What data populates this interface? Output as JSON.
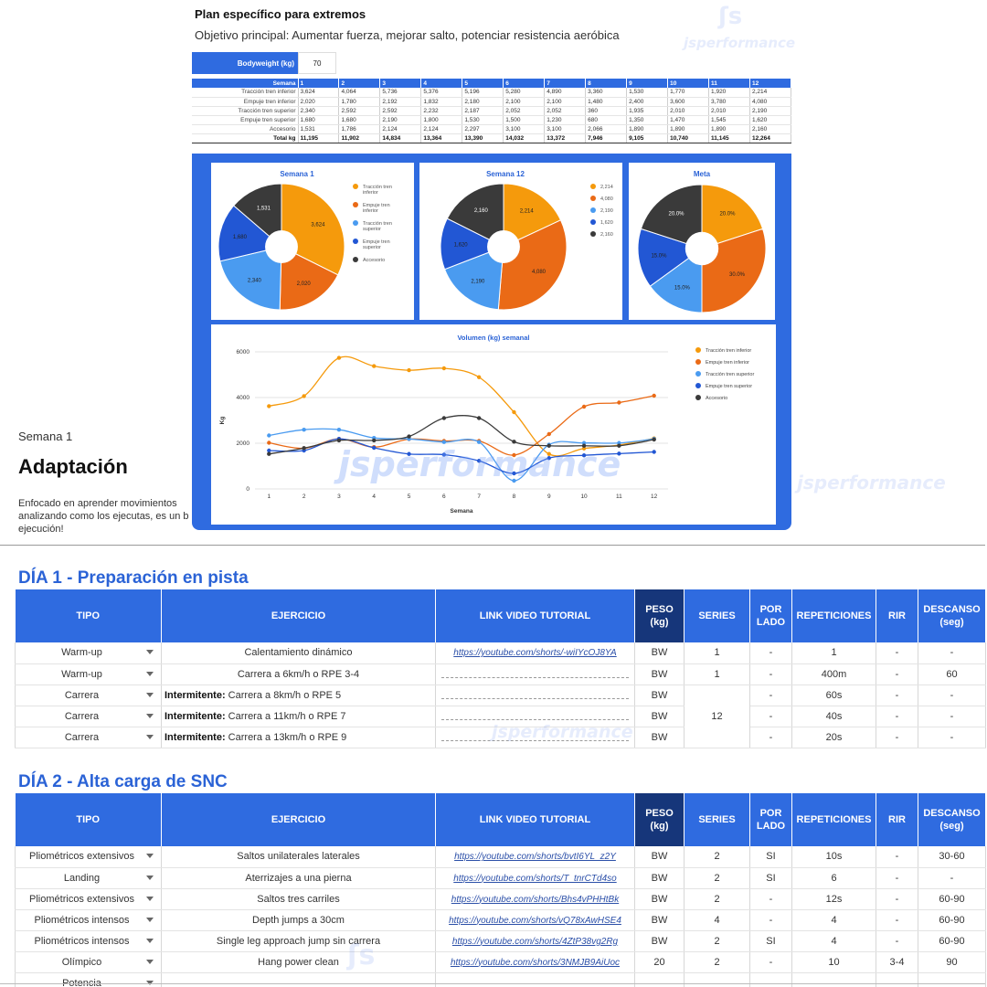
{
  "doc": {
    "week": "Semana 1",
    "title": "Adaptación",
    "desc_line1": "Enfocado en aprender movimientos",
    "desc_line2": "analizando como los ejecutas, es un b",
    "desc_line3": "ejecución!",
    "watermark": "jsperformance"
  },
  "card": {
    "title": "Plan específico para extremos",
    "objective": "Objetivo principal: Aumentar fuerza, mejorar salto, potenciar resistencia aeróbica",
    "bodyweight_label": "Bodyweight (kg)",
    "bodyweight_value": "70",
    "volume_table": {
      "header_label": "Semana",
      "weeks": [
        "1",
        "2",
        "3",
        "4",
        "5",
        "6",
        "7",
        "8",
        "9",
        "10",
        "11",
        "12"
      ],
      "rows": [
        {
          "label": "Tracción tren inferior",
          "values": [
            "3,624",
            "4,064",
            "5,736",
            "5,376",
            "5,196",
            "5,280",
            "4,890",
            "3,360",
            "1,530",
            "1,770",
            "1,920",
            "2,214"
          ]
        },
        {
          "label": "Empuje tren inferior",
          "values": [
            "2,020",
            "1,780",
            "2,192",
            "1,832",
            "2,180",
            "2,100",
            "2,100",
            "1,480",
            "2,400",
            "3,600",
            "3,780",
            "4,080"
          ]
        },
        {
          "label": "Tracción tren superior",
          "values": [
            "2,340",
            "2,592",
            "2,592",
            "2,232",
            "2,187",
            "2,052",
            "2,052",
            "360",
            "1,935",
            "2,010",
            "2,010",
            "2,190"
          ]
        },
        {
          "label": "Empuje tren superior",
          "values": [
            "1,680",
            "1,680",
            "2,190",
            "1,800",
            "1,530",
            "1,500",
            "1,230",
            "680",
            "1,350",
            "1,470",
            "1,545",
            "1,620"
          ]
        },
        {
          "label": "Accesorio",
          "values": [
            "1,531",
            "1,786",
            "2,124",
            "2,124",
            "2,297",
            "3,100",
            "3,100",
            "2,066",
            "1,890",
            "1,890",
            "1,890",
            "2,160"
          ]
        }
      ],
      "total_label": "Total kg",
      "totals": [
        "11,195",
        "11,902",
        "14,834",
        "13,364",
        "13,390",
        "14,032",
        "13,372",
        "7,946",
        "9,105",
        "10,740",
        "11,145",
        "12,264"
      ]
    }
  },
  "chart_data": [
    {
      "type": "pie",
      "title": "Semana 1",
      "labels": [
        "Tracción tren inferior",
        "Empuje tren inferior",
        "Tracción tren superior",
        "Empuje tren superior",
        "Accesorio"
      ],
      "values": [
        3624,
        2020,
        2340,
        1680,
        1531
      ],
      "slice_labels": [
        "3,624",
        "2,020",
        "2,340",
        "1,680",
        "1,531"
      ],
      "legend": [
        "Tracción tren inferior",
        "Empuje tren inferior",
        "Tracción tren superior",
        "Empuje tren superior",
        "Accesorio"
      ],
      "colors": [
        "#f59a0c",
        "#ea6a16",
        "#4a9bf0",
        "#2257d4",
        "#3a3a3a"
      ]
    },
    {
      "type": "pie",
      "title": "Semana 12",
      "values": [
        2214,
        4080,
        2190,
        1620,
        2160
      ],
      "slice_labels": [
        "2,214",
        "4,080",
        "2,190",
        "1,620",
        "2,160"
      ],
      "legend": [
        "2,214",
        "4,080",
        "2,190",
        "1,620",
        "2,160"
      ],
      "colors": [
        "#f59a0c",
        "#ea6a16",
        "#4a9bf0",
        "#2257d4",
        "#3a3a3a"
      ]
    },
    {
      "type": "pie",
      "title": "Meta",
      "values": [
        20,
        30,
        15,
        15,
        20
      ],
      "slice_labels": [
        "20.0%",
        "30.0%",
        "15.0%",
        "15.0%",
        "20.0%"
      ],
      "colors": [
        "#f59a0c",
        "#ea6a16",
        "#4a9bf0",
        "#2257d4",
        "#3a3a3a"
      ]
    },
    {
      "type": "line",
      "title": "Volumen (kg) semanal",
      "xlabel": "Semana",
      "ylabel": "Kg",
      "x": [
        1,
        2,
        3,
        4,
        5,
        6,
        7,
        8,
        9,
        10,
        11,
        12
      ],
      "ylim": [
        0,
        6000
      ],
      "yticks": [
        0,
        2000,
        4000,
        6000
      ],
      "grid": true,
      "legend_position": "right",
      "series": [
        {
          "name": "Tracción tren inferior",
          "color": "#f59a0c",
          "values": [
            3624,
            4064,
            5736,
            5376,
            5196,
            5280,
            4890,
            3360,
            1530,
            1770,
            1920,
            2214
          ]
        },
        {
          "name": "Empuje tren inferior",
          "color": "#ea6a16",
          "values": [
            2020,
            1780,
            2192,
            1832,
            2180,
            2100,
            2100,
            1480,
            2400,
            3600,
            3780,
            4080
          ]
        },
        {
          "name": "Tracción tren superior",
          "color": "#4a9bf0",
          "values": [
            2340,
            2592,
            2592,
            2232,
            2187,
            2052,
            2052,
            360,
            1935,
            2010,
            2010,
            2190
          ]
        },
        {
          "name": "Empuje tren superior",
          "color": "#2257d4",
          "values": [
            1680,
            1680,
            2190,
            1800,
            1530,
            1500,
            1230,
            680,
            1350,
            1470,
            1545,
            1620
          ]
        },
        {
          "name": "Accesorio",
          "color": "#3a3a3a",
          "values": [
            1531,
            1786,
            2124,
            2124,
            2297,
            3100,
            3100,
            2066,
            1890,
            1890,
            1890,
            2160
          ]
        }
      ]
    }
  ],
  "table_headers": {
    "tipo": "TIPO",
    "ejercicio": "EJERCICIO",
    "link": "LINK VIDEO TUTORIAL",
    "peso_1": "PESO",
    "peso_2": "(kg)",
    "series": "SERIES",
    "por_1": "POR",
    "por_2": "LADO",
    "reps": "REPETICIONES",
    "rir": "RIR",
    "desc_1": "DESCANSO",
    "desc_2": "(seg)"
  },
  "day1": {
    "title": "DÍA 1 - Preparación en pista",
    "rows": [
      {
        "tipo": "Warm-up",
        "ej_bold": "",
        "ej": "Calentamiento dinámico",
        "link": "https://youtube.com/shorts/-wiIYcOJ8YA",
        "peso": "BW",
        "series": "1",
        "por_lado": "-",
        "reps": "1",
        "rir": "-",
        "desc": "-"
      },
      {
        "tipo": "Warm-up",
        "ej_bold": "",
        "ej": "Carrera a 6km/h o RPE 3-4",
        "link": "",
        "peso": "BW",
        "series": "1",
        "por_lado": "-",
        "reps": "400m",
        "rir": "-",
        "desc": "60"
      },
      {
        "tipo": "Carrera",
        "ej_bold": "Intermitente:",
        "ej": " Carrera a 8km/h o RPE 5",
        "link": "",
        "peso": "BW",
        "series": "12",
        "por_lado": "-",
        "reps": "60s",
        "rir": "-",
        "desc": "-"
      },
      {
        "tipo": "Carrera",
        "ej_bold": "Intermitente:",
        "ej": " Carrera a 11km/h o RPE 7",
        "link": "",
        "peso": "BW",
        "series": "",
        "por_lado": "-",
        "reps": "40s",
        "rir": "-",
        "desc": "-"
      },
      {
        "tipo": "Carrera",
        "ej_bold": "Intermitente:",
        "ej": " Carrera a 13km/h o RPE 9",
        "link": "",
        "peso": "BW",
        "series": "",
        "por_lado": "-",
        "reps": "20s",
        "rir": "-",
        "desc": "-"
      }
    ]
  },
  "day2": {
    "title": "DÍA 2 - Alta carga de SNC",
    "rows": [
      {
        "tipo": "Pliométricos extensivos",
        "ej": "Saltos unilaterales laterales",
        "link": "https://youtube.com/shorts/bvtI6YL_z2Y",
        "peso": "BW",
        "series": "2",
        "por_lado": "SI",
        "reps": "10s",
        "rir": "-",
        "desc": "30-60"
      },
      {
        "tipo": "Landing",
        "ej": "Aterrizajes a una pierna",
        "link": "https://youtube.com/shorts/T_tnrCTd4so",
        "peso": "BW",
        "series": "2",
        "por_lado": "SI",
        "reps": "6",
        "rir": "-",
        "desc": "-"
      },
      {
        "tipo": "Pliométricos extensivos",
        "ej": "Saltos tres carriles",
        "link": "https://youtube.com/shorts/Bhs4vPHHtBk",
        "peso": "BW",
        "series": "2",
        "por_lado": "-",
        "reps": "12s",
        "rir": "-",
        "desc": "60-90"
      },
      {
        "tipo": "Pliométricos intensos",
        "ej": "Depth jumps a 30cm",
        "link": "https://youtube.com/shorts/vQ78xAwHSE4",
        "peso": "BW",
        "series": "4",
        "por_lado": "-",
        "reps": "4",
        "rir": "-",
        "desc": "60-90"
      },
      {
        "tipo": "Pliométricos intensos",
        "ej": "Single leg approach jump sin carrera",
        "link": "https://youtube.com/shorts/4ZtP38vg2Rg",
        "peso": "BW",
        "series": "2",
        "por_lado": "SI",
        "reps": "4",
        "rir": "-",
        "desc": "60-90"
      },
      {
        "tipo": "Olímpico",
        "ej": "Hang power clean",
        "link": "https://youtube.com/shorts/3NMJB9AiUoc",
        "peso": "20",
        "series": "2",
        "por_lado": "-",
        "reps": "10",
        "rir": "3-4",
        "desc": "90"
      },
      {
        "tipo": "Potencia",
        "ej": "",
        "link": "",
        "peso": "",
        "series": "",
        "por_lado": "",
        "reps": "",
        "rir": "",
        "desc": ""
      }
    ]
  }
}
